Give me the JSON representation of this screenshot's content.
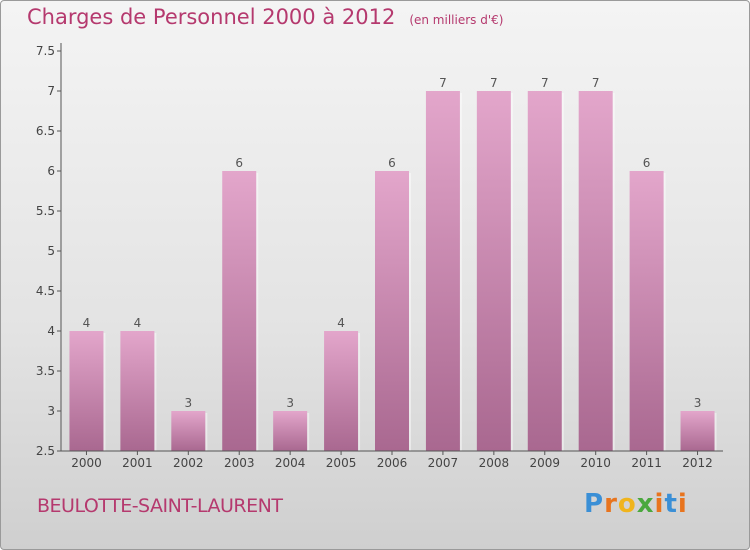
{
  "chart_data": {
    "type": "bar",
    "title": "Charges de Personnel 2000 à 2012",
    "unit": "(en milliers d'€)",
    "categories": [
      "2000",
      "2001",
      "2002",
      "2003",
      "2004",
      "2005",
      "2006",
      "2007",
      "2008",
      "2009",
      "2010",
      "2011",
      "2012"
    ],
    "values": [
      4,
      4,
      3,
      6,
      3,
      4,
      6,
      7,
      7,
      7,
      7,
      6,
      3
    ],
    "value_labels": [
      "4",
      "4",
      "3",
      "6",
      "3",
      "4",
      "6",
      "7",
      "7",
      "7",
      "7",
      "6",
      "3"
    ],
    "ylim": [
      2.5,
      7.5
    ],
    "yticks": [
      "2.5",
      "3",
      "3.5",
      "4",
      "4.5",
      "5",
      "5.5",
      "6",
      "6.5",
      "7",
      "7.5"
    ],
    "xlabel": "",
    "ylabel": "",
    "grid": false,
    "bar_color": "#c97fa8"
  },
  "footer": {
    "town": "BEULOTTE-SAINT-LAURENT",
    "logo": [
      "P",
      "r",
      "o",
      "x",
      "i",
      "t",
      "i"
    ],
    "logo_colors": [
      "#3a8fd6",
      "#e8741e",
      "#f0b41c",
      "#4aa83e",
      "#e8741e",
      "#3a8fd6",
      "#e8741e"
    ]
  },
  "colors": {
    "accent": "#b5396e",
    "axis": "#555555"
  }
}
